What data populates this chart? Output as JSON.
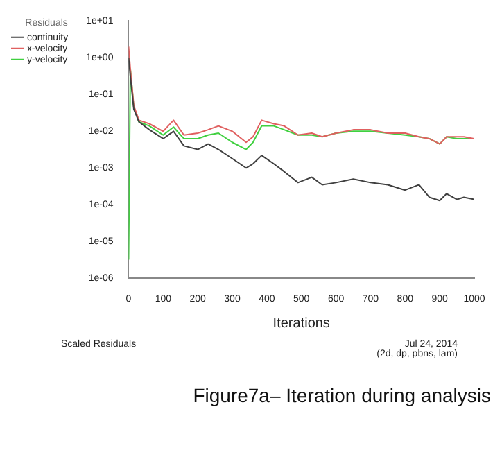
{
  "chart_data": {
    "type": "line",
    "xlabel": "Iterations",
    "legend_title": "Residuals",
    "legend": "top left",
    "grid": false,
    "marker": "none",
    "line_style": "solid",
    "log": "y",
    "x": [
      0,
      5,
      15,
      30,
      60,
      100,
      130,
      160,
      200,
      230,
      260,
      300,
      340,
      360,
      385,
      420,
      450,
      490,
      530,
      560,
      600,
      650,
      700,
      750,
      800,
      840,
      870,
      900,
      920,
      950,
      970,
      1000
    ],
    "xlim": [
      0,
      1000
    ],
    "xticks": [
      0,
      100,
      200,
      300,
      400,
      500,
      600,
      700,
      800,
      900,
      1000
    ],
    "ylim": [
      1e-06,
      10
    ],
    "yticks": [
      {
        "value": 1e-06,
        "label": "1e-06"
      },
      {
        "value": 1e-05,
        "label": "1e-05"
      },
      {
        "value": 0.0001,
        "label": "1e-04"
      },
      {
        "value": 0.001,
        "label": "1e-03"
      },
      {
        "value": 0.01,
        "label": "1e-02"
      },
      {
        "value": 0.1,
        "label": "1e-01"
      },
      {
        "value": 1,
        "label": "1e+00"
      },
      {
        "value": 10,
        "label": "1e+01"
      }
    ],
    "series": [
      {
        "name": "continuity",
        "color": "#404040",
        "values": [
          1,
          0.32,
          0.04,
          0.018,
          0.011,
          0.0063,
          0.01,
          0.004,
          0.0032,
          0.0045,
          0.0032,
          0.0018,
          0.001,
          0.0013,
          0.0022,
          0.0013,
          0.0008,
          0.0004,
          0.00056,
          0.00035,
          0.0004,
          0.0005,
          0.0004,
          0.00035,
          0.00025,
          0.00035,
          0.00016,
          0.00013,
          0.0002,
          0.00014,
          0.00016,
          0.00014
        ]
      },
      {
        "name": "x-velocity",
        "color": "#e06060",
        "values": [
          2,
          0.5,
          0.05,
          0.02,
          0.016,
          0.01,
          0.02,
          0.0079,
          0.0089,
          0.011,
          0.014,
          0.01,
          0.005,
          0.0071,
          0.02,
          0.016,
          0.014,
          0.0079,
          0.0089,
          0.0071,
          0.0089,
          0.011,
          0.011,
          0.0089,
          0.0089,
          0.0071,
          0.0063,
          0.0045,
          0.0071,
          0.0071,
          0.0071,
          0.0063
        ]
      },
      {
        "name": "y-velocity",
        "color": "#40d040",
        "values": [
          3.2e-06,
          0.5,
          0.045,
          0.018,
          0.014,
          0.0079,
          0.013,
          0.0063,
          0.0063,
          0.0079,
          0.0089,
          0.005,
          0.0032,
          0.005,
          0.014,
          0.014,
          0.011,
          0.0079,
          0.0079,
          0.0071,
          0.0089,
          0.01,
          0.01,
          0.0089,
          0.0079,
          0.0071,
          0.0063,
          0.0045,
          0.0071,
          0.0063,
          0.0063,
          0.0063
        ]
      }
    ],
    "annotations": [
      "Scaled Residuals",
      "Jul 24, 2014",
      "(2d, dp, pbns, lam)",
      "Figure7a– Iteration during analysis"
    ]
  }
}
